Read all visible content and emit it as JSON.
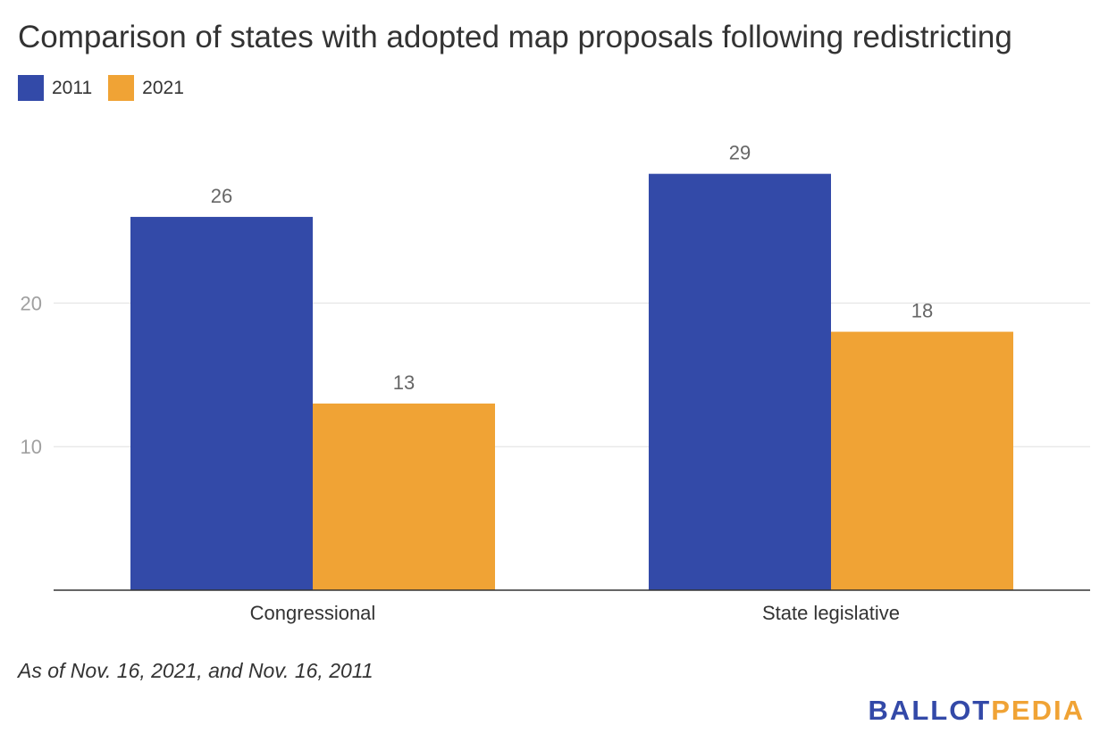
{
  "chart_data": {
    "type": "bar",
    "title": "Comparison of states with adopted map proposals following redistricting",
    "categories": [
      "Congressional",
      "State legislative"
    ],
    "series": [
      {
        "name": "2011",
        "values": [
          26,
          29
        ],
        "color": "#334aa8"
      },
      {
        "name": "2021",
        "values": [
          13,
          18
        ],
        "color": "#f0a335"
      }
    ],
    "yticks": [
      10,
      20
    ],
    "ylim": [
      0,
      30
    ],
    "xlabel": "",
    "ylabel": "",
    "grid": true,
    "legend_position": "top-left"
  },
  "note": "As of Nov. 16, 2021, and Nov. 16, 2011",
  "logo": {
    "part1": "BALLOT",
    "part2": "PEDIA"
  }
}
